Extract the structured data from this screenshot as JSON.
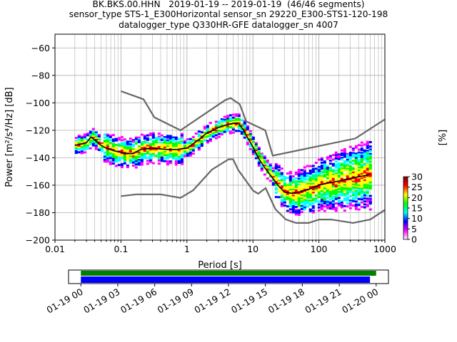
{
  "title_lines": [
    "BK.BKS.00.HHN   2019-01-19 -- 2019-01-19  (46/46 segments)",
    "sensor_type STS-1_E300Horizontal sensor_sn 29220_E300-STS1-120-198",
    "datalogger_type Q330HR-GFE datalogger_sn 4007"
  ],
  "colors": {
    "noise_models": "#666666",
    "mode_line": "#000000",
    "coverage_segments": "#008000",
    "coverage_data": "#0000ff"
  },
  "chart_data": [
    {
      "type": "heatmap",
      "name": "ppsd",
      "xlabel": "Period [s]",
      "ylabel": "Power [m²/s⁴/Hz] [dB]",
      "xscale": "log",
      "xlim": [
        0.01,
        1000
      ],
      "ylim": [
        -200,
        -50
      ],
      "x_ticks": [
        0.01,
        0.1,
        1,
        10,
        100,
        1000
      ],
      "x_tick_labels": [
        "0.01",
        "0.1",
        "1",
        "10",
        "100",
        "1000"
      ],
      "y_ticks": [
        -200,
        -180,
        -160,
        -140,
        -120,
        -100,
        -80,
        -60
      ],
      "y_tick_labels": [
        "−200",
        "−180",
        "−160",
        "−140",
        "−120",
        "−100",
        "−80",
        "−60"
      ],
      "grid": true,
      "colorbar": {
        "label": "[%]",
        "ticks": [
          0,
          5,
          10,
          15,
          20,
          25,
          30
        ],
        "range": [
          0,
          30
        ],
        "colormap": [
          "#ffffff",
          "#ff00ff",
          "#0000ff",
          "#00ffff",
          "#00ff00",
          "#ffff00",
          "#ff0000",
          "#7f0000"
        ]
      },
      "series": [
        {
          "role": "new-high-noise-model",
          "x": [
            0.1,
            0.22,
            0.32,
            0.8,
            3.8,
            4.6,
            6.3,
            7.9,
            15.4,
            20,
            354.8,
            1000
          ],
          "y": [
            -91.5,
            -97.4,
            -110.5,
            -120,
            -98,
            -96.5,
            -101,
            -113.5,
            -120,
            -138.5,
            -126,
            -112
          ]
        },
        {
          "role": "new-low-noise-model",
          "x": [
            0.1,
            0.17,
            0.4,
            0.8,
            1.24,
            2.4,
            4.3,
            5.0,
            6.0,
            10.0,
            12.0,
            15.6,
            21.9,
            31.6,
            45.0,
            70.0,
            101,
            154,
            328,
            600,
            1000
          ],
          "y": [
            -168,
            -166.7,
            -166.7,
            -169.2,
            -163.7,
            -148.6,
            -141.1,
            -141.1,
            -149,
            -163.8,
            -166.2,
            -162.1,
            -177.5,
            -185,
            -187.5,
            -187.5,
            -185,
            -185,
            -187.5,
            -185,
            -178
          ]
        },
        {
          "role": "mode",
          "x": [
            0.02,
            0.025,
            0.03,
            0.035,
            0.04,
            0.05,
            0.06,
            0.08,
            0.1,
            0.12,
            0.15,
            0.2,
            0.3,
            0.5,
            0.7,
            1.0,
            1.5,
            2.0,
            3.0,
            4.0,
            5.0,
            6.0,
            7.0,
            8.0,
            10,
            12,
            15,
            20,
            25,
            30,
            40,
            50,
            70,
            100,
            150,
            200,
            300,
            500,
            600
          ],
          "y": [
            -131,
            -130,
            -129,
            -125,
            -127,
            -131,
            -133,
            -135,
            -136,
            -137,
            -137,
            -134,
            -133,
            -134,
            -134,
            -133,
            -127,
            -122,
            -118,
            -116,
            -115,
            -115,
            -119,
            -124,
            -132,
            -140,
            -147,
            -155,
            -161,
            -165,
            -166,
            -165,
            -163,
            -160,
            -158,
            -157,
            -155,
            -153,
            -152
          ]
        }
      ]
    },
    {
      "type": "bar",
      "name": "coverage",
      "x_tick_labels": [
        "01-19 00",
        "01-19 03",
        "01-19 06",
        "01-19 09",
        "01-19 12",
        "01-19 15",
        "01-19 18",
        "01-19 21",
        "01-20 00"
      ],
      "xlim_hours": [
        -1,
        25
      ],
      "segments_hours": [
        0,
        24
      ],
      "data_hours": [
        0,
        23.5
      ]
    }
  ]
}
